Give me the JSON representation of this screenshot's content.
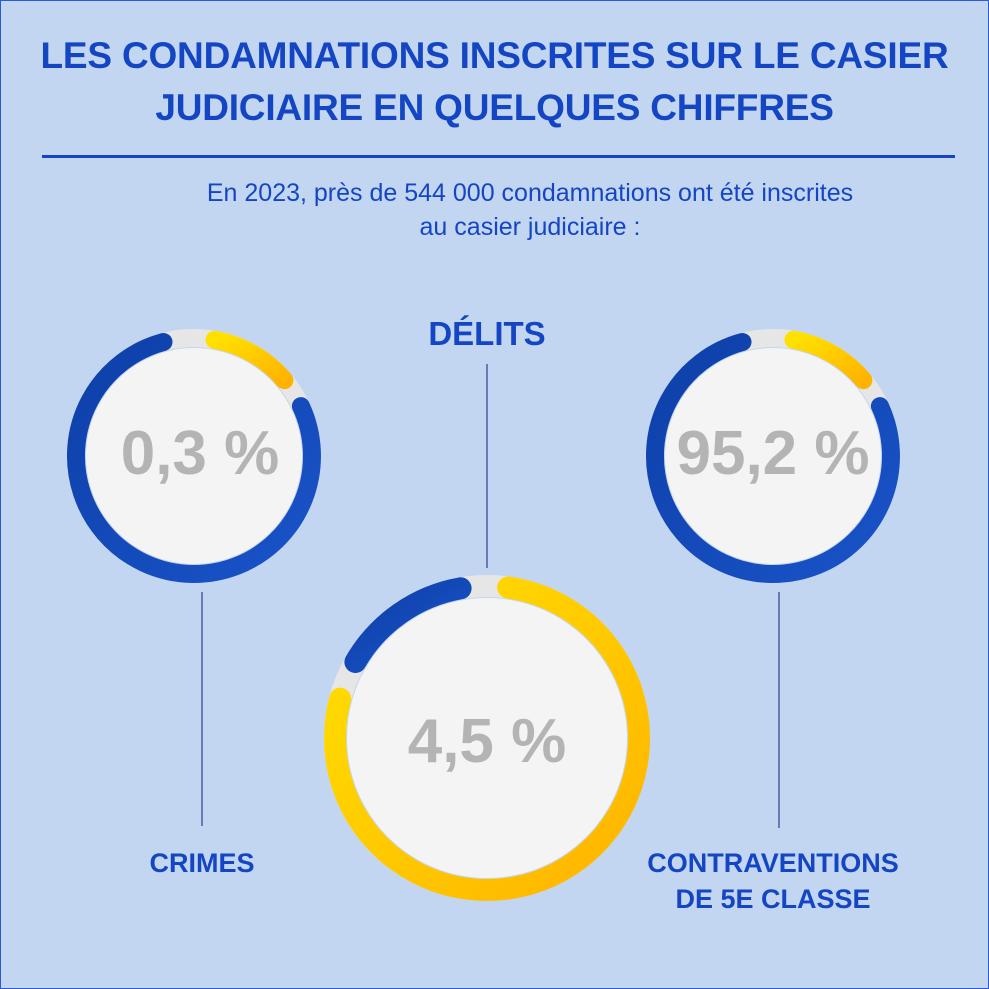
{
  "header": {
    "title_line1": "LES CONDAMNATIONS INSCRITES SUR LE CASIER",
    "title_line2": "JUDICIAIRE EN QUELQUES CHIFFRES",
    "subtitle_line1": "En 2023, près de 544 000 condamnations ont été inscrites",
    "subtitle_line2": "au casier judiciaire :"
  },
  "colors": {
    "background": "#c3d6f1",
    "accent_blue": "#1446c4",
    "ring_blue_dark": "#0d3fa8",
    "ring_blue_light": "#1a54c9",
    "ring_yellow": "#ffd700",
    "ring_orange": "#ffb300",
    "value_gray": "#b4b4b4",
    "inner_circle": "#f4f4f4"
  },
  "chart_data": {
    "type": "pie",
    "title": "En 2023, près de 544 000 condamnations ont été inscrites au casier judiciaire",
    "categories": [
      "CRIMES",
      "DÉLITS",
      "CONTRAVENTIONS DE 5E CLASSE"
    ],
    "values": [
      0.3,
      4.5,
      95.2
    ],
    "value_labels": [
      "0,3 %",
      "4,5 %",
      "95,2 %"
    ],
    "unit": "%"
  }
}
